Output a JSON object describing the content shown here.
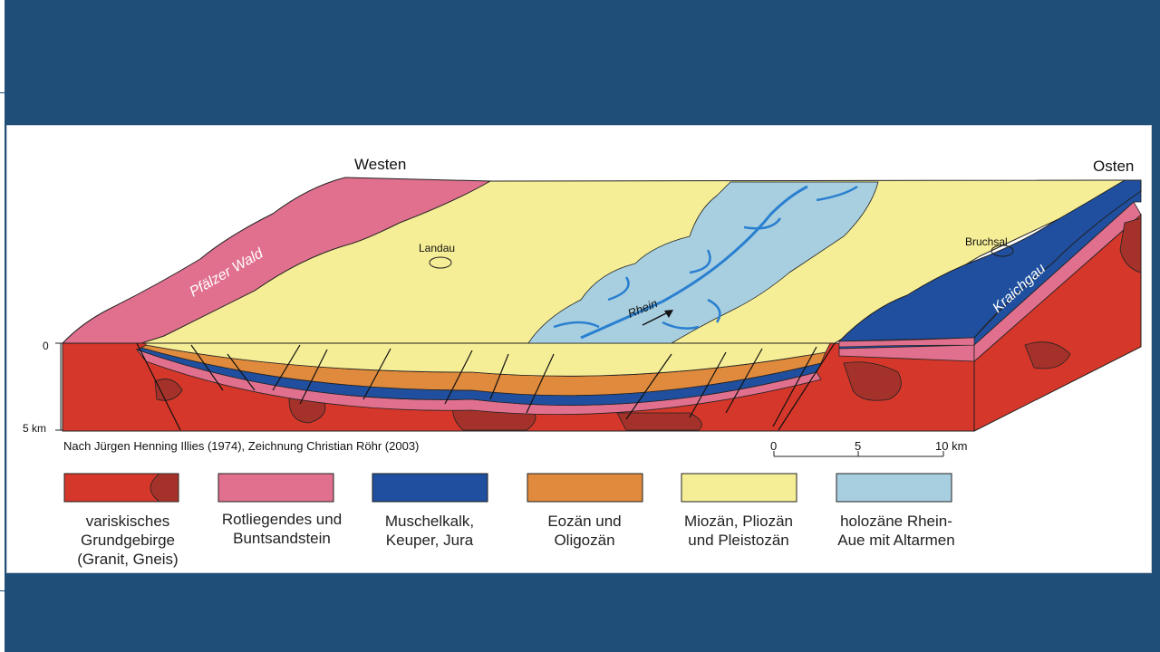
{
  "slide": {
    "background": "#1f4e79"
  },
  "diagram": {
    "labels": {
      "west": "Westen",
      "east": "Osten",
      "landau": "Landau",
      "bruchsal": "Bruchsal",
      "pfaelzer_wald": "Pfälzer Wald",
      "kraichgau": "Kraichgau",
      "rhein": "Rhein"
    },
    "depth_axis": {
      "top": "0",
      "bottom": "5 km"
    },
    "credit": "Nach Jürgen Henning Illies (1974), Zeichnung Christian Röhr (2003)",
    "scale_bar": {
      "ticks": [
        "0",
        "5",
        "10 km"
      ]
    }
  },
  "legend": [
    {
      "color": "#d5372a",
      "text": "variskisches\nGrundgebirge\n(Granit, Gneis)"
    },
    {
      "color": "#e0708e",
      "text": "Rotliegendes und\nBuntsandstein"
    },
    {
      "color": "#1f4f9e",
      "text": "Muschelkalk,\nKeuper, Jura"
    },
    {
      "color": "#df8a3c",
      "text": "Eozän und\nOligozän"
    },
    {
      "color": "#f6ee96",
      "text": "Miozän, Pliozän\nund Pleistozän"
    },
    {
      "color": "#a7cfe0",
      "text": "holozäne Rhein-\nAue mit Altarmen"
    }
  ]
}
